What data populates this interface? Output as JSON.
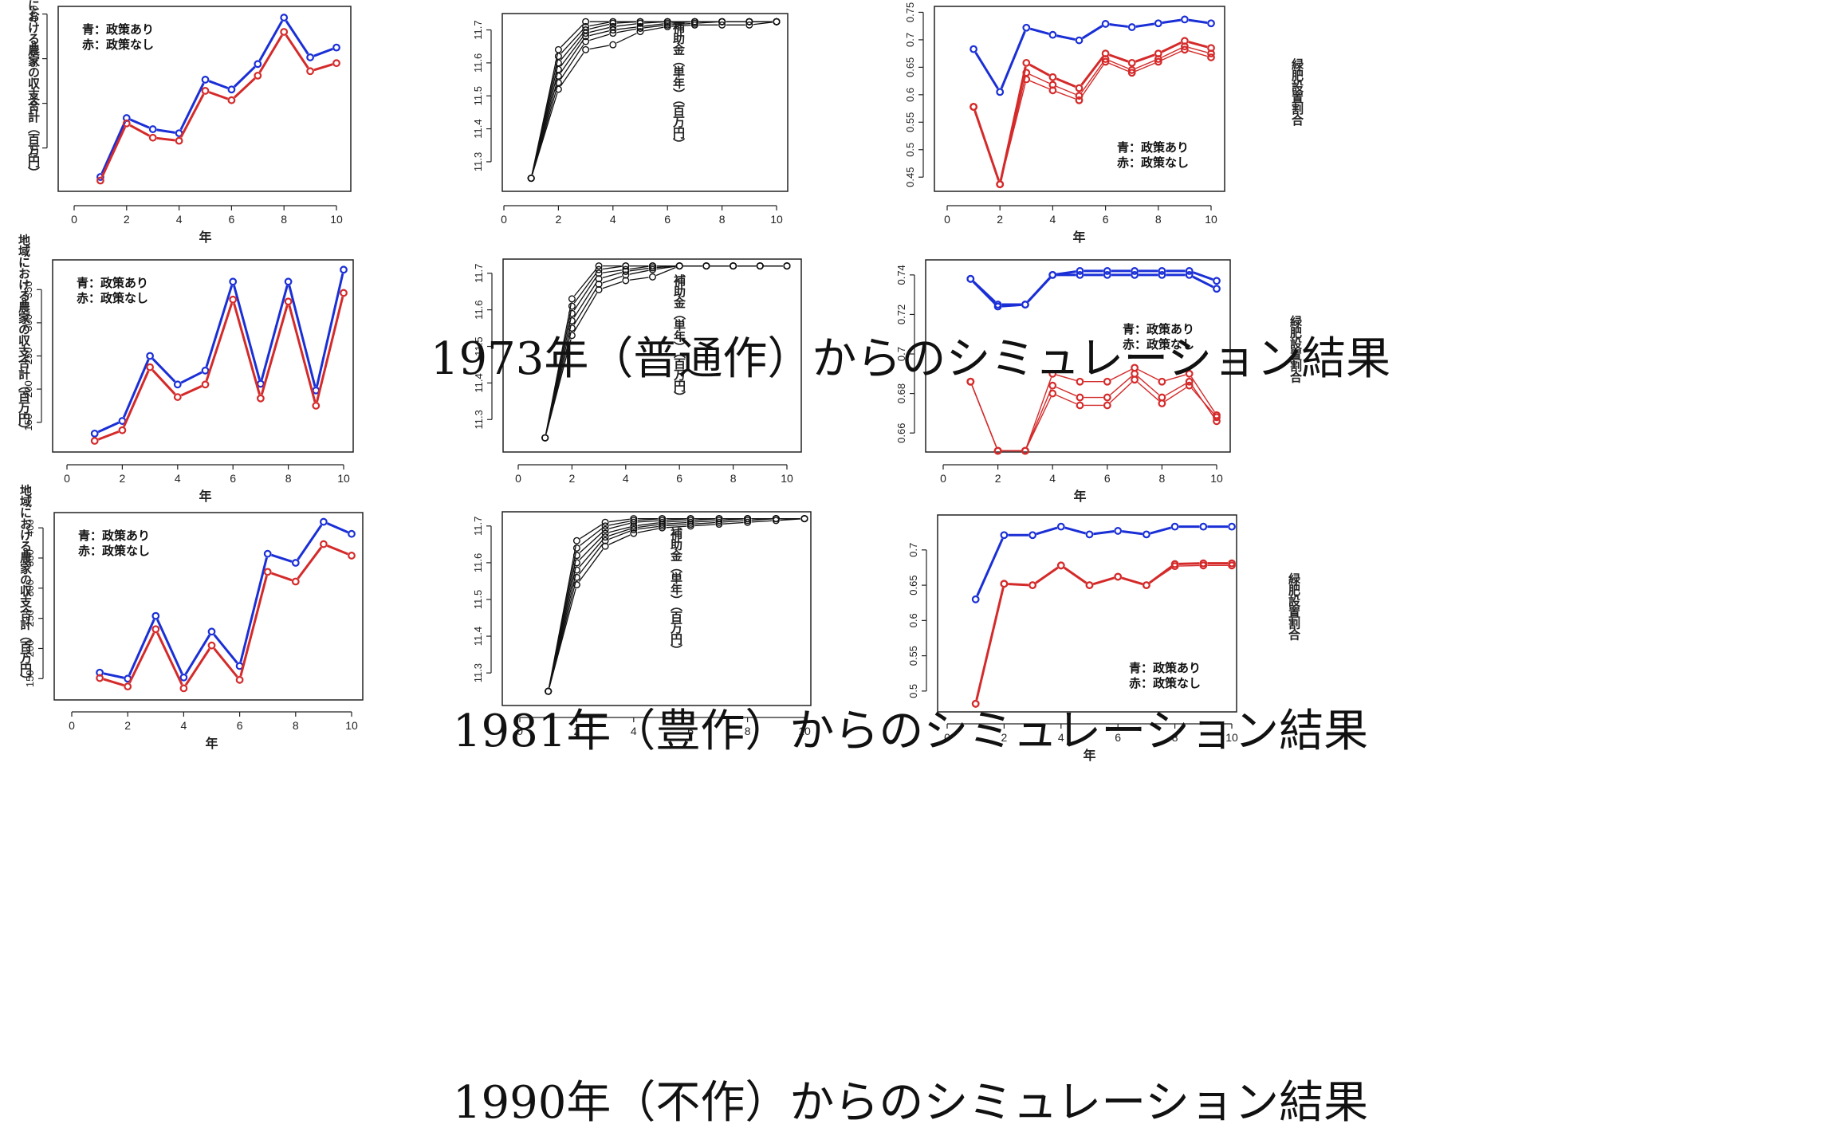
{
  "colors": {
    "with_policy": "#1a2fd6",
    "without_policy": "#d42a2a",
    "subsidy": "#111111"
  },
  "legend": {
    "with_policy": "青：政策あり",
    "without_policy": "赤：政策なし"
  },
  "axis_labels": {
    "x": "年",
    "income_y": "地域における農家の収支合計（百万円）",
    "subsidy_y": "補助金（単年）（百万円）",
    "greenfert_y": "緑肥設置割合"
  },
  "captions": [
    "1973年（普通作）からのシミュレーション結果",
    "1981年（豊作）からのシミュレーション結果",
    "1990年（不作）からのシミュレーション結果"
  ],
  "chart_data": [
    {
      "type": "line",
      "row": 0,
      "col": 0,
      "title": "",
      "xlabel": "年",
      "ylabel": "地域における農家の収支合計（百万円）",
      "xlim": [
        0,
        10
      ],
      "ylim": [
        10,
        410
      ],
      "x_ticks": [
        0,
        2,
        4,
        6,
        8,
        10
      ],
      "y_ticks": [
        100,
        200,
        300,
        400
      ],
      "legend": "top-left",
      "x": [
        1,
        2,
        3,
        4,
        5,
        6,
        7,
        8,
        9,
        10
      ],
      "series": [
        {
          "name": "青：政策あり",
          "color": "blue",
          "values": [
            35,
            167,
            142,
            133,
            253,
            231,
            288,
            392,
            303,
            325
          ]
        },
        {
          "name": "赤：政策なし",
          "color": "red",
          "values": [
            27,
            155,
            123,
            116,
            228,
            207,
            262,
            360,
            272,
            290
          ]
        }
      ]
    },
    {
      "type": "line",
      "row": 0,
      "col": 1,
      "title": "",
      "xlabel": "",
      "ylabel": "補助金（単年）（百万円）",
      "xlim": [
        0,
        10
      ],
      "ylim": [
        11.22,
        11.74
      ],
      "x_ticks": [
        0,
        2,
        4,
        6,
        8,
        10
      ],
      "y_ticks": [
        11.3,
        11.4,
        11.5,
        11.6,
        11.7
      ],
      "x": [
        1,
        2,
        3,
        4,
        5,
        6,
        7,
        8,
        9,
        10
      ],
      "series": [
        {
          "color": "black",
          "values": [
            11.25,
            11.64,
            11.725,
            11.725,
            11.725,
            11.725,
            11.725,
            11.725,
            11.725,
            11.725
          ]
        },
        {
          "color": "black",
          "values": [
            11.25,
            11.62,
            11.71,
            11.725,
            11.725,
            11.725,
            11.725,
            11.725,
            11.725,
            11.725
          ]
        },
        {
          "color": "black",
          "values": [
            11.25,
            11.6,
            11.7,
            11.72,
            11.725,
            11.725,
            11.725,
            11.725,
            11.725,
            11.725
          ]
        },
        {
          "color": "black",
          "values": [
            11.25,
            11.58,
            11.69,
            11.71,
            11.72,
            11.725,
            11.725,
            11.725,
            11.725,
            11.725
          ]
        },
        {
          "color": "black",
          "values": [
            11.25,
            11.56,
            11.68,
            11.7,
            11.71,
            11.72,
            11.725,
            11.725,
            11.725,
            11.725
          ]
        },
        {
          "color": "black",
          "values": [
            11.25,
            11.54,
            11.665,
            11.69,
            11.705,
            11.715,
            11.72,
            11.725,
            11.725,
            11.725
          ]
        },
        {
          "color": "black",
          "values": [
            11.25,
            11.52,
            11.64,
            11.655,
            11.695,
            11.71,
            11.715,
            11.715,
            11.715,
            11.725
          ]
        }
      ]
    },
    {
      "type": "line",
      "row": 0,
      "col": 2,
      "title": "",
      "xlabel": "年",
      "ylabel": "緑肥設置割合",
      "xlim": [
        0,
        10
      ],
      "ylim": [
        0.43,
        0.755
      ],
      "x_ticks": [
        0,
        2,
        4,
        6,
        8,
        10
      ],
      "y_ticks": [
        0.45,
        0.5,
        0.55,
        0.6,
        0.65,
        0.7,
        0.75
      ],
      "legend": "bottom-right",
      "x": [
        1,
        2,
        3,
        4,
        5,
        6,
        7,
        8,
        9,
        10
      ],
      "series": [
        {
          "name": "青：政策あり",
          "color": "blue",
          "values": [
            0.683,
            0.605,
            0.722,
            0.709,
            0.699,
            0.729,
            0.723,
            0.73,
            0.737,
            0.73
          ]
        },
        {
          "name": "赤：政策なし",
          "color": "red",
          "values": [
            0.578,
            0.437,
            0.658,
            0.632,
            0.612,
            0.675,
            0.658,
            0.675,
            0.698,
            0.685
          ]
        },
        {
          "color": "red",
          "values": [
            0.578,
            0.437,
            0.64,
            0.618,
            0.598,
            0.665,
            0.645,
            0.665,
            0.688,
            0.675
          ]
        },
        {
          "color": "red",
          "values": [
            0.578,
            0.437,
            0.628,
            0.608,
            0.59,
            0.66,
            0.64,
            0.66,
            0.682,
            0.668
          ]
        }
      ]
    },
    {
      "type": "line",
      "row": 1,
      "col": 0,
      "title": "",
      "xlabel": "年",
      "ylabel": "地域における農家の収支合計（百万円）",
      "xlim": [
        0,
        10
      ],
      "ylim": [
        110,
        390
      ],
      "x_ticks": [
        0,
        2,
        4,
        6,
        8,
        10
      ],
      "y_ticks": [
        150,
        200,
        250,
        300,
        350
      ],
      "legend": "top-left",
      "x": [
        1,
        2,
        3,
        4,
        5,
        6,
        7,
        8,
        9,
        10
      ],
      "series": [
        {
          "name": "青：政策あり",
          "color": "blue",
          "values": [
            133,
            152,
            250,
            207,
            228,
            362,
            208,
            362,
            198,
            380
          ]
        },
        {
          "name": "赤：政策なし",
          "color": "red",
          "values": [
            122,
            138,
            233,
            188,
            207,
            335,
            186,
            332,
            175,
            345
          ]
        }
      ]
    },
    {
      "type": "line",
      "row": 1,
      "col": 1,
      "title": "",
      "xlabel": "",
      "ylabel": "補助金（単年）（百万円）",
      "xlim": [
        0,
        10
      ],
      "ylim": [
        11.22,
        11.73
      ],
      "x_ticks": [
        0,
        2,
        4,
        6,
        8,
        10
      ],
      "y_ticks": [
        11.3,
        11.4,
        11.5,
        11.6,
        11.7
      ],
      "x": [
        1,
        2,
        3,
        4,
        5,
        6,
        7,
        8,
        9,
        10
      ],
      "series": [
        {
          "color": "black",
          "values": [
            11.25,
            11.63,
            11.72,
            11.72,
            11.72,
            11.72,
            11.72,
            11.72,
            11.72,
            11.72
          ]
        },
        {
          "color": "black",
          "values": [
            11.25,
            11.61,
            11.71,
            11.72,
            11.72,
            11.72,
            11.72,
            11.72,
            11.72,
            11.72
          ]
        },
        {
          "color": "black",
          "values": [
            11.25,
            11.59,
            11.7,
            11.71,
            11.72,
            11.72,
            11.72,
            11.72,
            11.72,
            11.72
          ]
        },
        {
          "color": "black",
          "values": [
            11.25,
            11.57,
            11.685,
            11.705,
            11.715,
            11.72,
            11.72,
            11.72,
            11.72,
            11.72
          ]
        },
        {
          "color": "black",
          "values": [
            11.25,
            11.55,
            11.67,
            11.695,
            11.71,
            11.72,
            11.72,
            11.72,
            11.72,
            11.72
          ]
        },
        {
          "color": "black",
          "values": [
            11.25,
            11.53,
            11.655,
            11.68,
            11.69,
            11.72,
            11.72,
            11.72,
            11.72,
            11.72
          ]
        }
      ]
    },
    {
      "type": "line",
      "row": 1,
      "col": 2,
      "title": "",
      "xlabel": "年",
      "ylabel": "緑肥設置割合",
      "xlim": [
        0,
        10
      ],
      "ylim": [
        0.652,
        0.746
      ],
      "x_ticks": [
        0,
        2,
        4,
        6,
        8,
        10
      ],
      "y_ticks": [
        0.66,
        0.68,
        0.7,
        0.72,
        0.74
      ],
      "legend": "top-right",
      "x": [
        1,
        2,
        3,
        4,
        5,
        6,
        7,
        8,
        9,
        10
      ],
      "series": [
        {
          "name": "青：政策あり",
          "color": "blue",
          "values": [
            0.738,
            0.725,
            0.725,
            0.74,
            0.742,
            0.742,
            0.742,
            0.742,
            0.742,
            0.737
          ]
        },
        {
          "color": "blue",
          "values": [
            0.738,
            0.724,
            0.725,
            0.74,
            0.74,
            0.74,
            0.74,
            0.74,
            0.74,
            0.733
          ]
        },
        {
          "name": "赤：政策なし",
          "color": "red",
          "values": [
            0.686,
            0.651,
            0.651,
            0.69,
            0.686,
            0.686,
            0.693,
            0.686,
            0.69,
            0.669
          ]
        },
        {
          "color": "red",
          "values": [
            0.686,
            0.651,
            0.651,
            0.684,
            0.678,
            0.678,
            0.69,
            0.678,
            0.686,
            0.666
          ]
        },
        {
          "color": "red",
          "values": [
            0.686,
            0.651,
            0.651,
            0.68,
            0.674,
            0.674,
            0.687,
            0.675,
            0.684,
            0.668
          ]
        }
      ]
    },
    {
      "type": "line",
      "row": 2,
      "col": 0,
      "title": "",
      "xlabel": "年",
      "ylabel": "地域における農家の収支合計（百万円）",
      "xlim": [
        0,
        10
      ],
      "ylim": [
        120,
        420
      ],
      "x_ticks": [
        0,
        2,
        4,
        6,
        8,
        10
      ],
      "y_ticks": [
        150,
        200,
        250,
        300,
        350,
        400
      ],
      "legend": "top-left",
      "x": [
        1,
        2,
        3,
        4,
        5,
        6,
        7,
        8,
        9,
        10
      ],
      "series": [
        {
          "name": "青：政策あり",
          "color": "blue",
          "values": [
            160,
            150,
            254,
            152,
            228,
            171,
            357,
            342,
            410,
            390
          ]
        },
        {
          "name": "赤：政策なし",
          "color": "red",
          "values": [
            151,
            137,
            232,
            134,
            205,
            148,
            327,
            311,
            373,
            354
          ]
        }
      ]
    },
    {
      "type": "line",
      "row": 2,
      "col": 1,
      "title": "",
      "xlabel": "",
      "ylabel": "補助金（単年）（百万円）",
      "xlim": [
        0,
        10
      ],
      "ylim": [
        11.22,
        11.73
      ],
      "x_ticks": [
        0,
        2,
        4,
        6,
        8,
        10
      ],
      "y_ticks": [
        11.3,
        11.4,
        11.5,
        11.6,
        11.7
      ],
      "x": [
        1,
        2,
        3,
        4,
        5,
        6,
        7,
        8,
        9,
        10
      ],
      "series": [
        {
          "color": "black",
          "values": [
            11.25,
            11.66,
            11.71,
            11.72,
            11.72,
            11.72,
            11.72,
            11.72,
            11.72,
            11.72
          ]
        },
        {
          "color": "black",
          "values": [
            11.25,
            11.64,
            11.7,
            11.715,
            11.72,
            11.72,
            11.72,
            11.72,
            11.72,
            11.72
          ]
        },
        {
          "color": "black",
          "values": [
            11.25,
            11.62,
            11.69,
            11.71,
            11.715,
            11.72,
            11.72,
            11.72,
            11.72,
            11.72
          ]
        },
        {
          "color": "black",
          "values": [
            11.25,
            11.6,
            11.68,
            11.7,
            11.71,
            11.715,
            11.72,
            11.72,
            11.72,
            11.72
          ]
        },
        {
          "color": "black",
          "values": [
            11.25,
            11.58,
            11.67,
            11.695,
            11.705,
            11.71,
            11.715,
            11.72,
            11.72,
            11.72
          ]
        },
        {
          "color": "black",
          "values": [
            11.25,
            11.56,
            11.66,
            11.69,
            11.7,
            11.705,
            11.71,
            11.715,
            11.72,
            11.72
          ]
        },
        {
          "color": "black",
          "values": [
            11.25,
            11.54,
            11.645,
            11.68,
            11.695,
            11.7,
            11.705,
            11.71,
            11.715,
            11.72
          ]
        }
      ]
    },
    {
      "type": "line",
      "row": 2,
      "col": 2,
      "title": "",
      "xlabel": "年",
      "ylabel": "緑肥設置割合",
      "xlim": [
        0,
        10
      ],
      "ylim": [
        0.475,
        0.745
      ],
      "x_ticks": [
        0,
        2,
        4,
        6,
        8,
        10
      ],
      "y_ticks": [
        0.5,
        0.55,
        0.6,
        0.65,
        0.7
      ],
      "legend": "bottom-right",
      "x": [
        1,
        2,
        3,
        4,
        5,
        6,
        7,
        8,
        9,
        10
      ],
      "series": [
        {
          "name": "青：政策あり",
          "color": "blue",
          "values": [
            0.63,
            0.721,
            0.721,
            0.733,
            0.722,
            0.727,
            0.722,
            0.733,
            0.733,
            0.733
          ]
        },
        {
          "name": "赤：政策なし",
          "color": "red",
          "values": [
            0.482,
            0.652,
            0.65,
            0.678,
            0.65,
            0.662,
            0.65,
            0.68,
            0.681,
            0.681
          ]
        },
        {
          "color": "red",
          "values": [
            0.482,
            0.652,
            0.65,
            0.678,
            0.65,
            0.662,
            0.65,
            0.677,
            0.678,
            0.678
          ]
        }
      ]
    }
  ]
}
